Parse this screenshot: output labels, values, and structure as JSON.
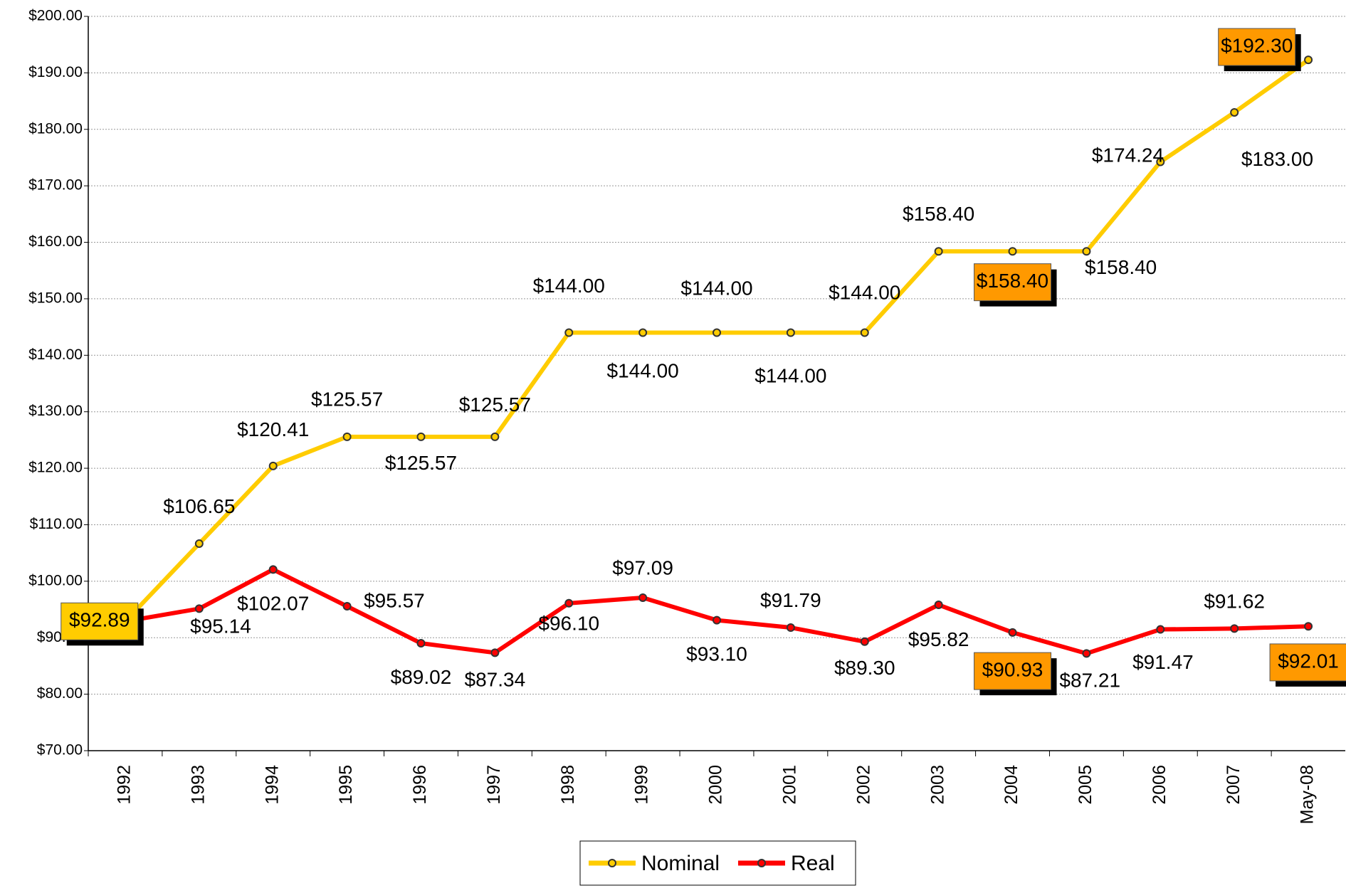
{
  "chart_data": {
    "type": "line",
    "categories": [
      "1992",
      "1993",
      "1994",
      "1995",
      "1996",
      "1997",
      "1998",
      "1999",
      "2000",
      "2001",
      "2002",
      "2003",
      "2004",
      "2005",
      "2006",
      "2007",
      "May-08"
    ],
    "ylim": [
      70,
      200
    ],
    "yticks": [
      {
        "value": 70,
        "label": "$70.00"
      },
      {
        "value": 80,
        "label": "$80.00"
      },
      {
        "value": 90,
        "label": "$90.00"
      },
      {
        "value": 100,
        "label": "$100.00"
      },
      {
        "value": 110,
        "label": "$110.00"
      },
      {
        "value": 120,
        "label": "$120.00"
      },
      {
        "value": 130,
        "label": "$130.00"
      },
      {
        "value": 140,
        "label": "$140.00"
      },
      {
        "value": 150,
        "label": "$150.00"
      },
      {
        "value": 160,
        "label": "$160.00"
      },
      {
        "value": 170,
        "label": "$170.00"
      },
      {
        "value": 180,
        "label": "$180.00"
      },
      {
        "value": 190,
        "label": "$190.00"
      },
      {
        "value": 200,
        "label": "$200.00"
      }
    ],
    "grid": true,
    "series": [
      {
        "name": "Nominal",
        "color": "#ffcc00",
        "values": [
          92.89,
          106.65,
          120.41,
          125.57,
          125.57,
          125.57,
          144.0,
          144.0,
          144.0,
          144.0,
          144.0,
          158.4,
          158.4,
          158.4,
          174.24,
          183.0,
          192.3
        ],
        "value_labels": [
          "$92.89",
          "$106.65",
          "$120.41",
          "$125.57",
          "$125.57",
          "$125.57",
          "$144.00",
          "$144.00",
          "$144.00",
          "$144.00",
          "$144.00",
          "$158.40",
          "$158.40",
          "$158.40",
          "$174.24",
          "$183.00",
          "$192.30"
        ],
        "boxed": [
          0,
          12,
          16
        ],
        "box_colors": [
          "#ffcc00",
          "#ff9900",
          "#ff9900"
        ]
      },
      {
        "name": "Real",
        "color": "#ff0000",
        "values": [
          92.89,
          95.14,
          102.07,
          95.57,
          89.02,
          87.34,
          96.1,
          97.09,
          93.1,
          91.79,
          89.3,
          95.82,
          90.93,
          87.21,
          91.47,
          91.62,
          92.01
        ],
        "value_labels": [
          null,
          "$95.14",
          "$102.07",
          "$95.57",
          "$89.02",
          "$87.34",
          "$96.10",
          "$97.09",
          "$93.10",
          "$91.79",
          "$89.30",
          "$95.82",
          "$90.93",
          "$87.21",
          "$91.47",
          "$91.62",
          "$92.01"
        ],
        "boxed": [
          12,
          16
        ],
        "box_colors": [
          "#ff9900",
          "#ff9900"
        ]
      }
    ]
  }
}
